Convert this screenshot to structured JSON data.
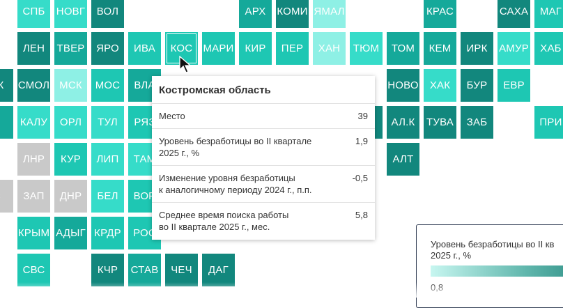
{
  "colors": {
    "l1": "#8ef0e5",
    "l2": "#36dcc9",
    "l3": "#1ec7b3",
    "l4": "#15a99a",
    "l5": "#12877d",
    "nodata": "#c9c9c9"
  },
  "regions": [
    {
      "label": "СПБ",
      "level": "l2"
    },
    {
      "label": "НОВГ",
      "level": "l2"
    },
    {
      "label": "ВОЛ",
      "level": "l5"
    },
    {
      "label": "АРХ",
      "level": "l4"
    },
    {
      "label": "КОМИ",
      "level": "l5"
    },
    {
      "label": "ЯМАЛ",
      "level": "l1"
    },
    {
      "label": "КРАС",
      "level": "l4"
    },
    {
      "label": "САХА",
      "level": "l5"
    },
    {
      "label": "МАГ",
      "level": "l3"
    },
    {
      "label": "ЛЕН",
      "level": "l5"
    },
    {
      "label": "ТВЕР",
      "level": "l4"
    },
    {
      "label": "ЯРО",
      "level": "l5"
    },
    {
      "label": "ИВА",
      "level": "l3"
    },
    {
      "label": "КОС",
      "level": "l3"
    },
    {
      "label": "МАРИ",
      "level": "l3"
    },
    {
      "label": "КИР",
      "level": "l3"
    },
    {
      "label": "ПЕР",
      "level": "l3"
    },
    {
      "label": "ХАН",
      "level": "l1"
    },
    {
      "label": "ТЮМ",
      "level": "l2"
    },
    {
      "label": "ТОМ",
      "level": "l4"
    },
    {
      "label": "КЕМ",
      "level": "l4"
    },
    {
      "label": "ИРК",
      "level": "l5"
    },
    {
      "label": "АМУР",
      "level": "l2"
    },
    {
      "label": "ХАБ",
      "level": "l3"
    },
    {
      "label": "СК",
      "level": "l5"
    },
    {
      "label": "СМОЛ",
      "level": "l5"
    },
    {
      "label": "МСК",
      "level": "l1"
    },
    {
      "label": "МОС",
      "level": "l3"
    },
    {
      "label": "ВЛА",
      "level": "l4"
    },
    {
      "label": "НОВО",
      "level": "l5"
    },
    {
      "label": "ХАК",
      "level": "l2"
    },
    {
      "label": "БУР",
      "level": "l5"
    },
    {
      "label": "ЕВР",
      "level": "l3"
    },
    {
      "label": "Я",
      "level": "l4"
    },
    {
      "label": "КАЛУ",
      "level": "l2"
    },
    {
      "label": "ОРЛ",
      "level": "l2"
    },
    {
      "label": "ТУЛ",
      "level": "l2"
    },
    {
      "label": "РЯЗ",
      "level": "l3"
    },
    {
      "label": "К",
      "level": "l5"
    },
    {
      "label": "АЛ.К",
      "level": "l5"
    },
    {
      "label": "ТУВА",
      "level": "l5"
    },
    {
      "label": "ЗАБ",
      "level": "l5"
    },
    {
      "label": "ПРИ",
      "level": "l3"
    },
    {
      "label": "ЛНР",
      "level": "nodata"
    },
    {
      "label": "КУР",
      "level": "l3"
    },
    {
      "label": "ЛИП",
      "level": "l2"
    },
    {
      "label": "ТАМ",
      "level": "l2"
    },
    {
      "label": "АЛТ",
      "level": "l5"
    },
    {
      "label": "С",
      "level": "nodata"
    },
    {
      "label": "ЗАП",
      "level": "nodata"
    },
    {
      "label": "ДНР",
      "level": "nodata"
    },
    {
      "label": "БЕЛ",
      "level": "l2"
    },
    {
      "label": "ВОР",
      "level": "l3"
    },
    {
      "label": "КРЫМ",
      "level": "l3"
    },
    {
      "label": "АДЫГ",
      "level": "l4"
    },
    {
      "label": "КРДР",
      "level": "l3"
    },
    {
      "label": "РОС",
      "level": "l3"
    },
    {
      "label": "СВС",
      "level": "l3"
    },
    {
      "label": "КЧР",
      "level": "l5"
    },
    {
      "label": "СТАВ",
      "level": "l4"
    },
    {
      "label": "ЧЕЧ",
      "level": "l5"
    },
    {
      "label": "ДАГ",
      "level": "l5"
    }
  ],
  "tooltip": {
    "title": "Костромская область",
    "rows": [
      {
        "label": "Место",
        "value": "39"
      },
      {
        "label": "Уровень безработицы во II квартале\n2025 г., %",
        "value": "1,9"
      },
      {
        "label": "Изменение уровня безработицы\nк аналогичному периоду 2024 г., п.п.",
        "value": "-0,5"
      },
      {
        "label": "Среднее время поиска работы\nво II квартале 2025 г., мес.",
        "value": "5,8"
      }
    ]
  },
  "legend": {
    "title": "Уровень безработицы во II кв\n2025 г., %",
    "min_label": "0,8"
  }
}
